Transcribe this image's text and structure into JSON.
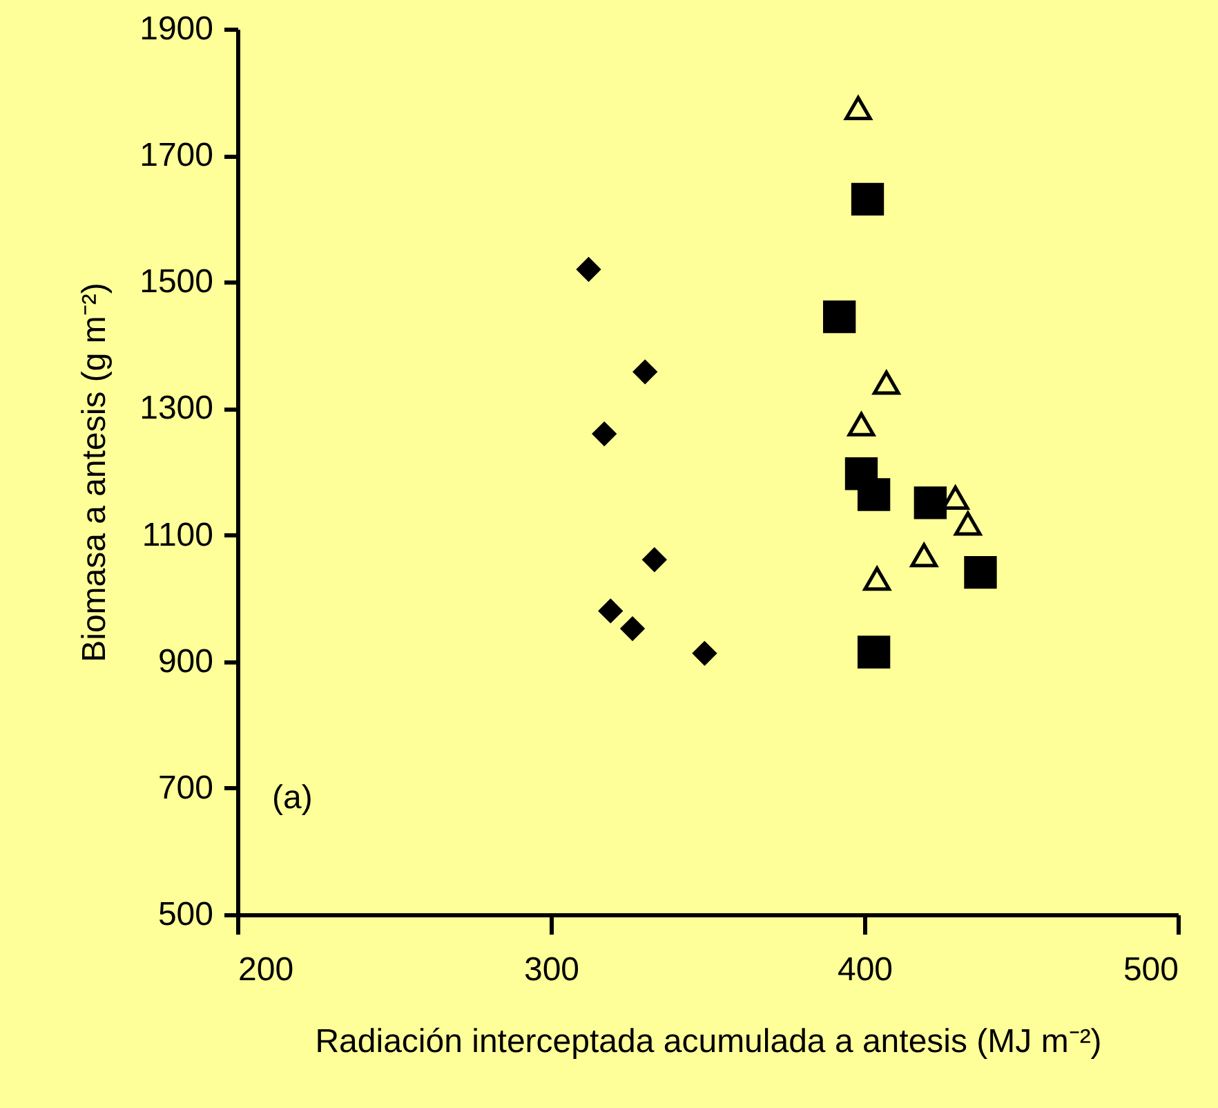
{
  "chart_data": {
    "type": "scatter",
    "xlabel": "Radiación interceptada acumulada a antesis (MJ m⁻²)",
    "ylabel": "Biomasa a antesis (g m⁻²)",
    "annotations": [
      "(a)"
    ],
    "xlim": [
      200,
      500
    ],
    "xticks": [
      200,
      300,
      400,
      500
    ],
    "ylim": [
      500,
      1900
    ],
    "yticks": [
      500,
      700,
      900,
      1100,
      1300,
      1500,
      1700,
      1900
    ],
    "grid": false,
    "series": [
      {
        "color": "#000000",
        "marker": "diamond",
        "x": [
          312,
          330,
          317,
          333,
          319,
          326,
          349
        ],
        "values": [
          1520,
          1358,
          1260,
          1061,
          980,
          952,
          913
        ]
      },
      {
        "color": "#000000",
        "marker": "square",
        "x": [
          401,
          392,
          399,
          403,
          421,
          437,
          403
        ],
        "values": [
          1631,
          1445,
          1197,
          1164,
          1151,
          1041,
          915
        ]
      },
      {
        "color": "#000000",
        "marker": "triangle",
        "x": [
          398,
          407,
          399,
          429,
          433,
          419,
          404
        ],
        "values": [
          1775,
          1341,
          1275,
          1159,
          1118,
          1068,
          1031
        ]
      }
    ]
  }
}
